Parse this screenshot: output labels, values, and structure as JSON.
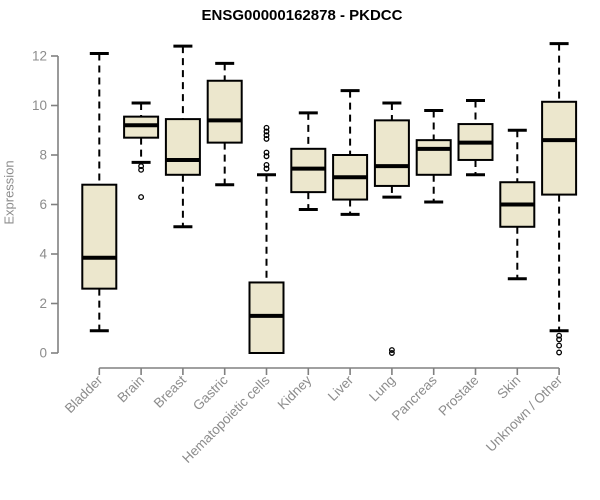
{
  "chart_data": {
    "type": "boxplot",
    "title": "ENSG00000162878 - PKDCC",
    "ylabel": "Expression",
    "ylim": [
      0,
      12
    ],
    "yticks": [
      0,
      2,
      4,
      6,
      8,
      10,
      12
    ],
    "grid": false,
    "legend": "none",
    "colors": {
      "box_fill": "#ece7cd",
      "box_stroke": "#000000",
      "median": "#000000",
      "whisker": "#000000",
      "axis": "#808080",
      "tick_label": "#8c8c8c",
      "title": "#000000",
      "background": "#ffffff"
    },
    "categories": [
      "Bladder",
      "Brain",
      "Breast",
      "Gastric",
      "Hematopoietic cells",
      "Kidney",
      "Liver",
      "Lung",
      "Pancreas",
      "Prostate",
      "Skin",
      "Unknown / Other"
    ],
    "series": [
      {
        "category": "Bladder",
        "whisker_low": 0.9,
        "q1": 2.6,
        "median": 3.85,
        "q3": 6.8,
        "whisker_high": 12.1,
        "outliers": []
      },
      {
        "category": "Brain",
        "whisker_low": 7.7,
        "q1": 8.7,
        "median": 9.2,
        "q3": 9.55,
        "whisker_high": 10.1,
        "outliers": [
          7.55,
          7.4,
          6.3
        ]
      },
      {
        "category": "Breast",
        "whisker_low": 5.1,
        "q1": 7.2,
        "median": 7.8,
        "q3": 9.45,
        "whisker_high": 12.4,
        "outliers": []
      },
      {
        "category": "Gastric",
        "whisker_low": 6.8,
        "q1": 8.5,
        "median": 9.4,
        "q3": 11.0,
        "whisker_high": 11.7,
        "outliers": []
      },
      {
        "category": "Hematopoietic cells",
        "whisker_low": 0.0,
        "q1": 0.0,
        "median": 1.5,
        "q3": 2.85,
        "whisker_high": 7.2,
        "outliers": [
          9.1,
          8.95,
          8.8,
          8.65,
          8.1,
          7.95,
          7.6,
          7.45
        ]
      },
      {
        "category": "Kidney",
        "whisker_low": 5.8,
        "q1": 6.5,
        "median": 7.45,
        "q3": 8.25,
        "whisker_high": 9.7,
        "outliers": []
      },
      {
        "category": "Liver",
        "whisker_low": 5.6,
        "q1": 6.2,
        "median": 7.1,
        "q3": 8.0,
        "whisker_high": 10.6,
        "outliers": []
      },
      {
        "category": "Lung",
        "whisker_low": 6.3,
        "q1": 6.75,
        "median": 7.55,
        "q3": 9.4,
        "whisker_high": 10.1,
        "outliers": [
          0.12,
          0.0
        ]
      },
      {
        "category": "Pancreas",
        "whisker_low": 6.1,
        "q1": 7.2,
        "median": 8.25,
        "q3": 8.6,
        "whisker_high": 9.8,
        "outliers": []
      },
      {
        "category": "Prostate",
        "whisker_low": 7.2,
        "q1": 7.8,
        "median": 8.5,
        "q3": 9.25,
        "whisker_high": 10.2,
        "outliers": []
      },
      {
        "category": "Skin",
        "whisker_low": 3.0,
        "q1": 5.1,
        "median": 6.0,
        "q3": 6.9,
        "whisker_high": 9.0,
        "outliers": []
      },
      {
        "category": "Unknown / Other",
        "whisker_low": 0.9,
        "q1": 6.4,
        "median": 8.6,
        "q3": 10.15,
        "whisker_high": 12.5,
        "outliers": [
          0.7,
          0.55,
          0.3,
          0.02
        ]
      }
    ]
  }
}
